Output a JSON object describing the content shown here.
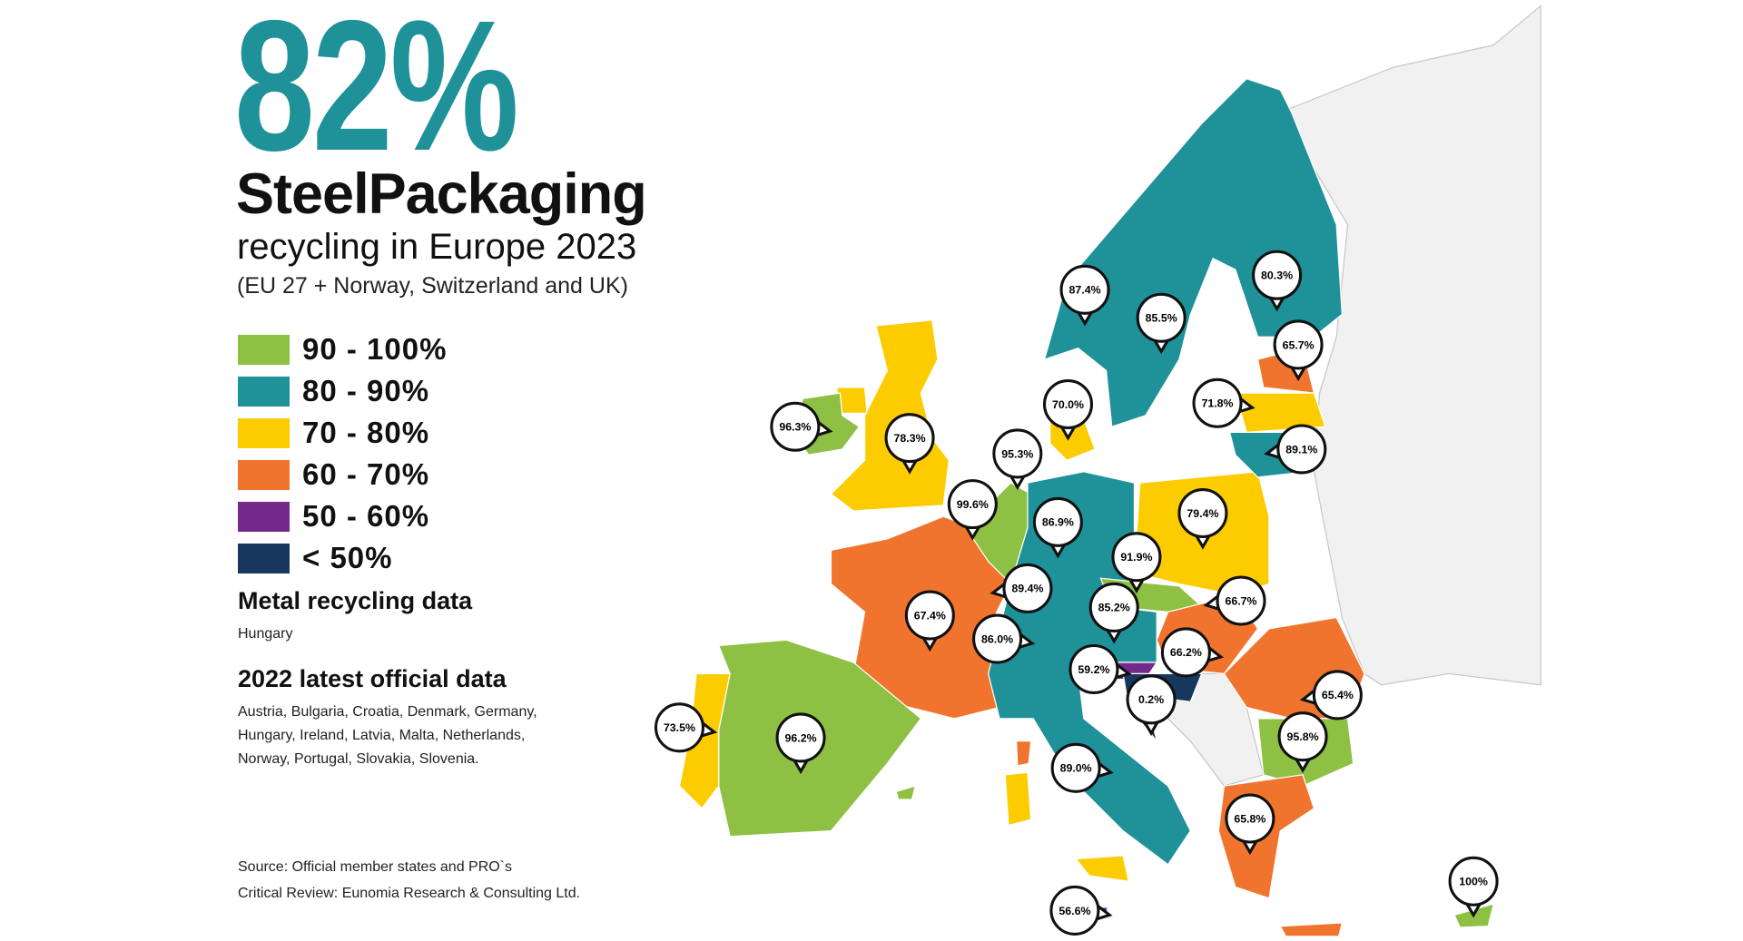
{
  "headline": {
    "value": "82%",
    "title": "SteelPackaging",
    "subtitle": "recycling in Europe 2023",
    "scope": "(EU 27 + Norway, Switzerland and UK)"
  },
  "colors": {
    "accent": "#1f9199",
    "land_other": "#f1f1f1"
  },
  "legend": [
    {
      "label": "90 - 100%",
      "color": "#8dc043"
    },
    {
      "label": "80 - 90%",
      "color": "#1f9199"
    },
    {
      "label": "70 - 80%",
      "color": "#fdcc00"
    },
    {
      "label": "60 - 70%",
      "color": "#f0742d"
    },
    {
      "label": "50 - 60%",
      "color": "#742a8d"
    },
    {
      "label": "< 50%",
      "color": "#17375e"
    }
  ],
  "notes": {
    "metal_heading": "Metal recycling data",
    "metal_countries": "Hungary",
    "official_heading": "2022 latest official data",
    "official_line1": "Austria, Bulgaria, Croatia, Denmark, Germany,",
    "official_line2": "Hungary, Ireland, Latvia, Malta, Netherlands,",
    "official_line3": "Norway, Portugal, Slovakia, Slovenia.",
    "source": "Source: Official member states and PRO`s",
    "review": "Critical Review: Eunomia Research & Consulting Ltd."
  },
  "callouts": [
    "87.4%",
    "85.5%",
    "80.3%",
    "65.7%",
    "70.0%",
    "71.8%",
    "89.1%",
    "96.3%",
    "78.3%",
    "95.3%",
    "99.6%",
    "86.9%",
    "79.4%",
    "91.9%",
    "89.4%",
    "66.7%",
    "67.4%",
    "85.2%",
    "86.0%",
    "66.2%",
    "59.2%",
    "0.2%",
    "65.4%",
    "73.5%",
    "96.2%",
    "95.8%",
    "89.0%",
    "65.8%",
    "56.6%",
    "100%"
  ]
}
